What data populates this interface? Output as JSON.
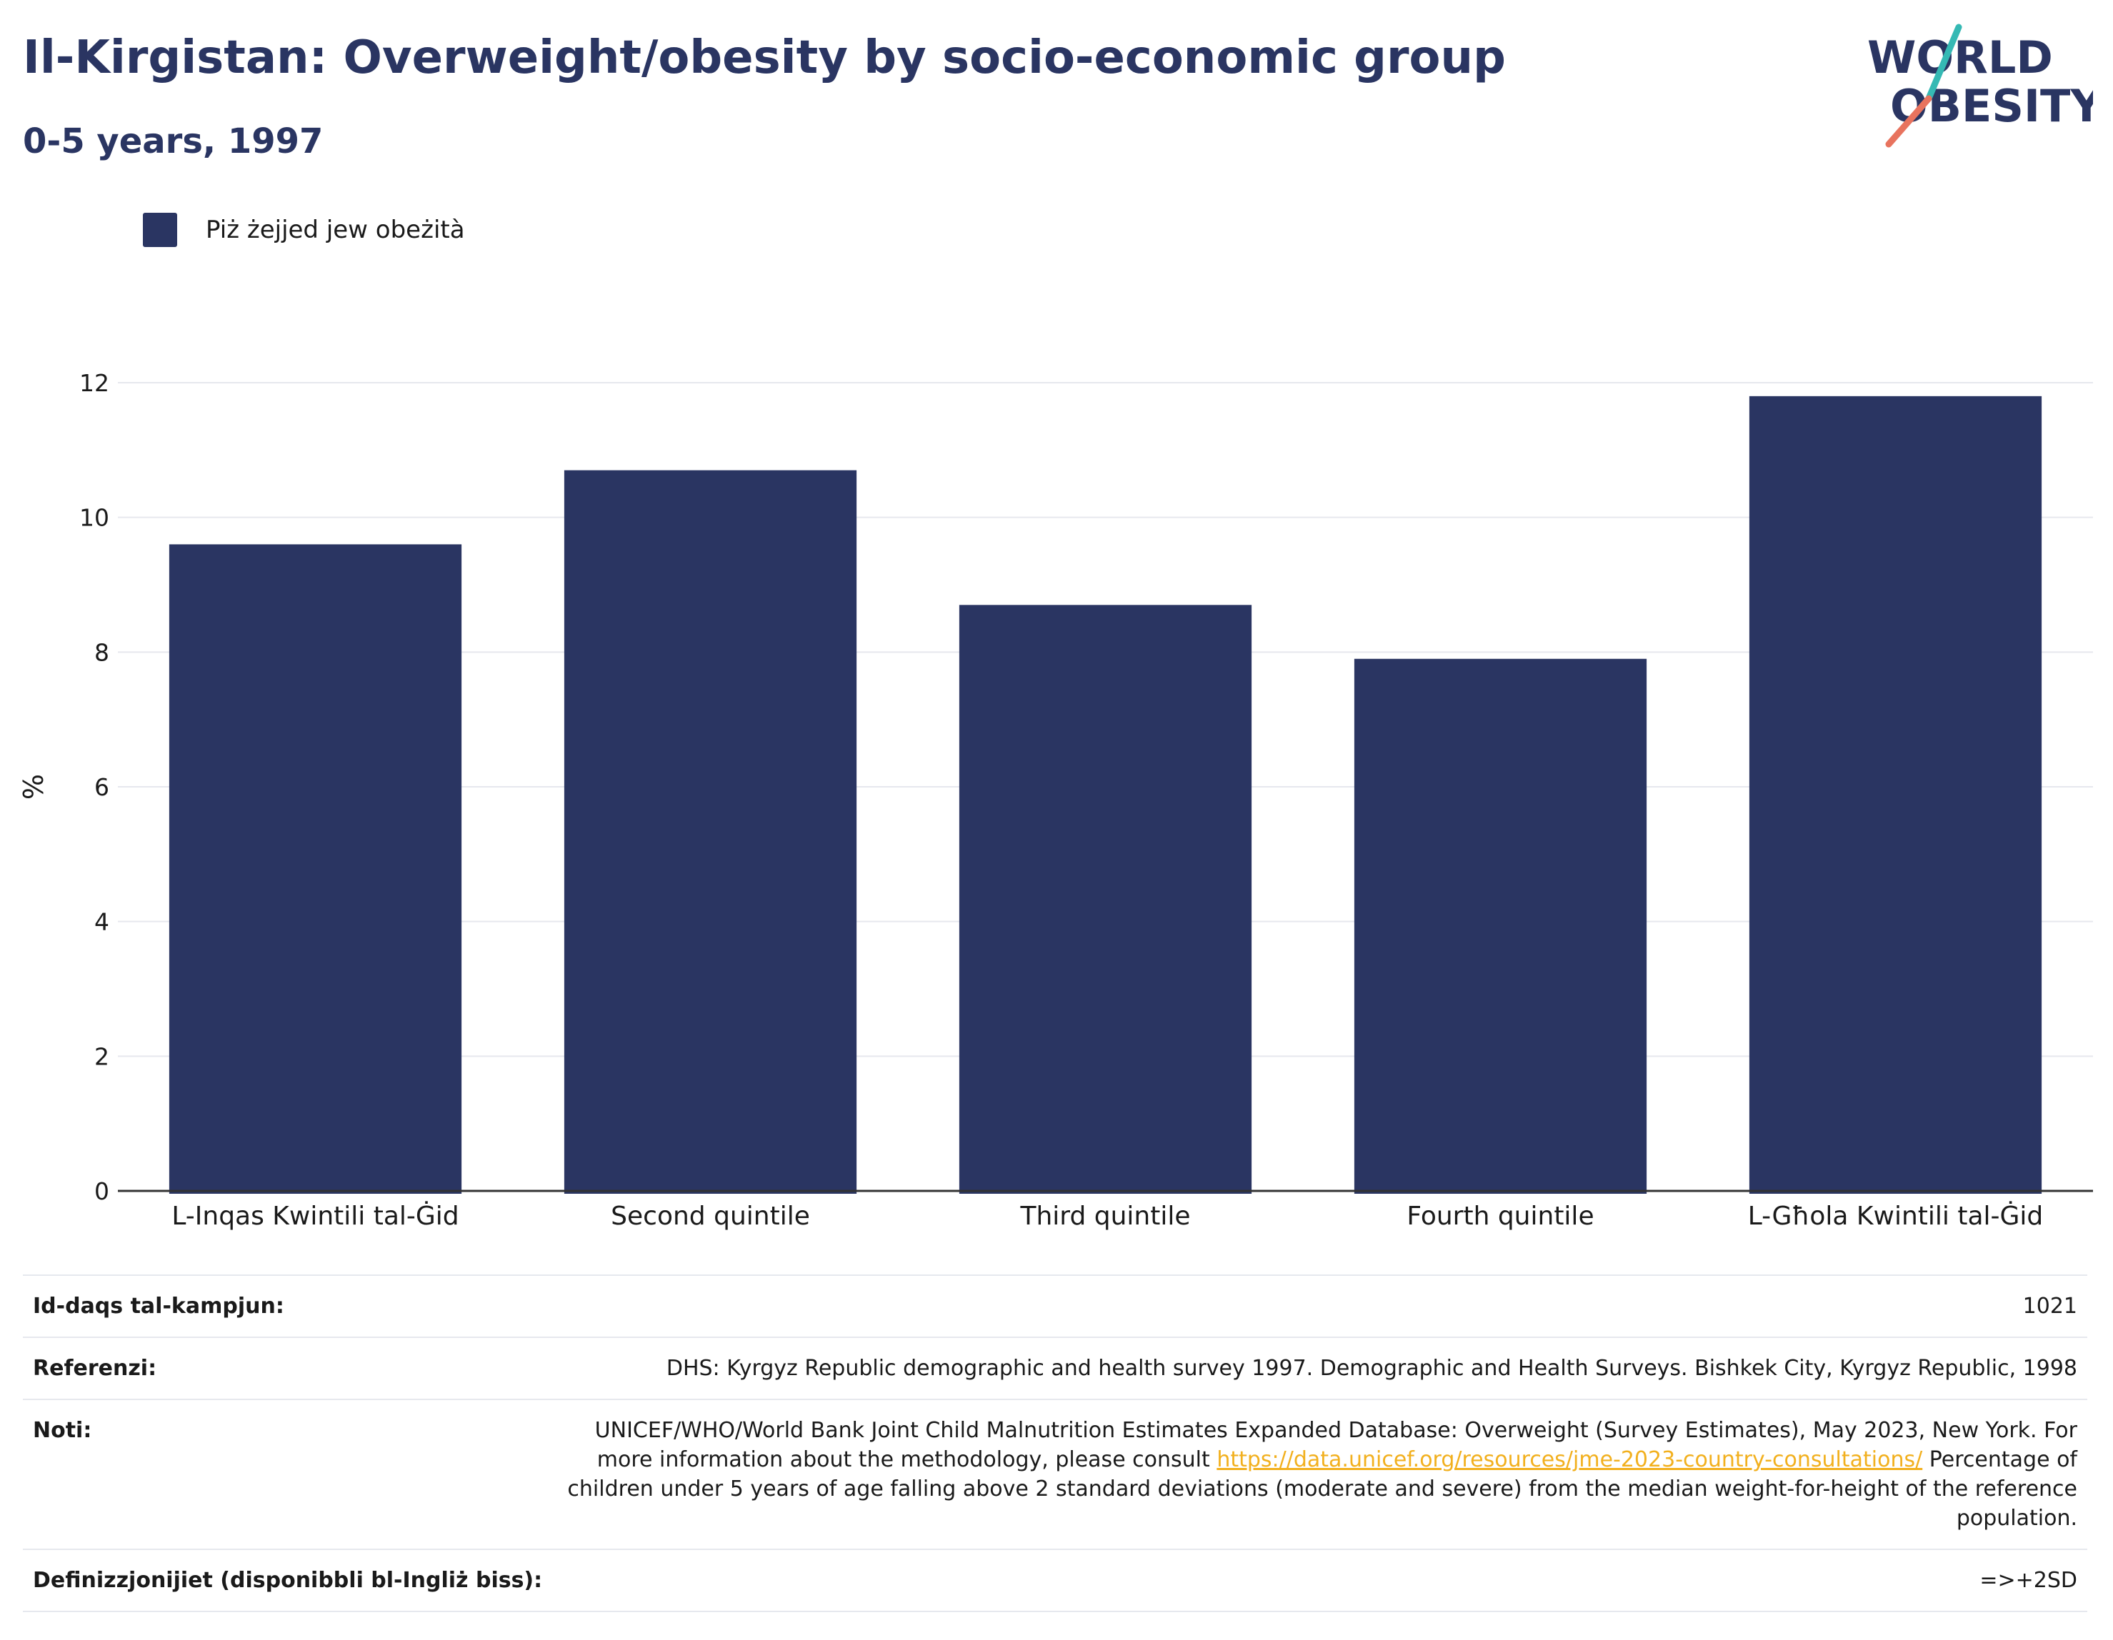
{
  "title": "Il-Kirgistan: Overweight/obesity by socio-economic group",
  "subtitle": "0-5 years, 1997",
  "logo": {
    "line1": "WORLD",
    "line2": "OBESITY",
    "accent_colors": [
      "#35b9b4",
      "#e8735e"
    ]
  },
  "colors": {
    "bar": "#2a3562",
    "grid": "#e6e8ee",
    "axis": "#333333",
    "link": "#f2b01e"
  },
  "legend": {
    "label": "Piż żejjed jew obeżità"
  },
  "chart_data": {
    "type": "bar",
    "categories": [
      "L-Inqas Kwintili tal-Ġid",
      "Second quintile",
      "Third quintile",
      "Fourth quintile",
      "L-Għola Kwintili tal-Ġid"
    ],
    "series": [
      {
        "name": "Piż żejjed jew obeżità",
        "values": [
          9.6,
          10.7,
          8.7,
          7.9,
          11.8
        ]
      }
    ],
    "ylabel": "%",
    "ylim": [
      0,
      12
    ],
    "yticks": [
      0,
      2,
      4,
      6,
      8,
      10,
      12
    ],
    "grid": true,
    "legend_position": "top-left"
  },
  "info": {
    "sample_size": {
      "label": "Id-daqs tal-kampjun:",
      "value": "1021"
    },
    "references": {
      "label": "Referenzi:",
      "value": "DHS: Kyrgyz Republic demographic and health survey 1997. Demographic and Health Surveys. Bishkek City, Kyrgyz Republic, 1998"
    },
    "notes": {
      "label": "Noti:",
      "text_before": "UNICEF/WHO/World Bank Joint Child Malnutrition Estimates Expanded Database: Overweight (Survey Estimates), May 2023, New York. For more information about the methodology, please consult ",
      "link": "https://data.unicef.org/resources/jme-2023-country-consultations/",
      "text_after": " Percentage of children under 5 years of age falling above 2 standard deviations (moderate and severe) from the median weight-for-height of the reference population."
    },
    "definitions": {
      "label": "Definizzjonijiet (disponibbli bl-Ingliż biss):",
      "value": "=>+2SD"
    }
  }
}
